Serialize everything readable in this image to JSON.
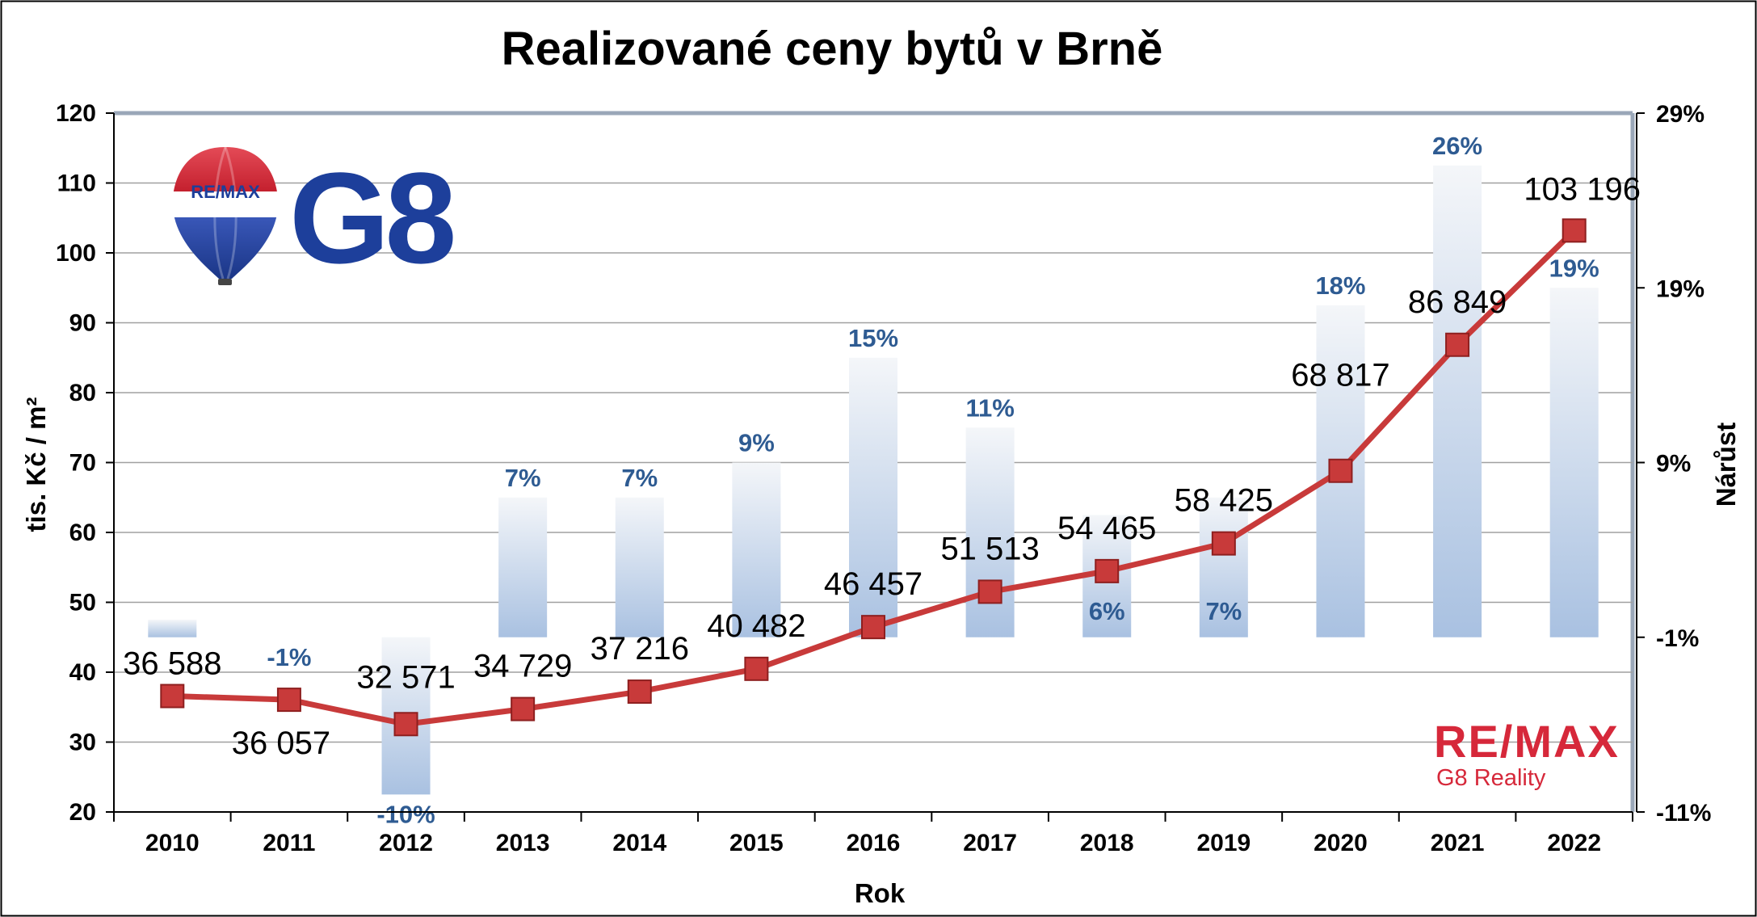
{
  "chart_data": {
    "type": "bar+line",
    "title": "Realizované ceny bytů v Brně",
    "xlabel": "Rok",
    "ylabel_left": "tis. Kč / m²",
    "ylabel_right": "Nárůst",
    "categories": [
      "2010",
      "2011",
      "2012",
      "2013",
      "2014",
      "2015",
      "2016",
      "2017",
      "2018",
      "2019",
      "2020",
      "2021",
      "2022"
    ],
    "y_left": {
      "min": 20,
      "max": 120,
      "ticks": [
        20,
        30,
        40,
        50,
        60,
        70,
        80,
        90,
        100,
        110,
        120
      ]
    },
    "y_right": {
      "min": -11,
      "max": 29,
      "ticks": [
        -11,
        -1,
        9,
        19,
        29
      ],
      "tick_labels": [
        "-11%",
        "-1%",
        "9%",
        "19%",
        "29%"
      ]
    },
    "grid": true,
    "series": [
      {
        "name": "",
        "kind": "line",
        "color": "#c83a3a",
        "values": [
          36.588,
          36.057,
          32.571,
          34.729,
          37.216,
          40.482,
          46.457,
          51.513,
          54.465,
          58.425,
          68.817,
          86.849,
          103.196
        ],
        "labels": [
          "36 588",
          "36 057",
          "32 571",
          "34 729",
          "37 216",
          "40 482",
          "46 457",
          "51 513",
          "54 465",
          "58 425",
          "68 817",
          "86 849",
          "103 196"
        ]
      },
      {
        "name": "",
        "kind": "bar",
        "color": "#b8cce4",
        "baseline": -1,
        "values": [
          0,
          -1,
          -10,
          7,
          7,
          9,
          15,
          11,
          6,
          7,
          18,
          26,
          19
        ],
        "labels": [
          "",
          "-1%",
          "-10%",
          "7%",
          "7%",
          "9%",
          "15%",
          "11%",
          "6%",
          "7%",
          "18%",
          "26%",
          "19%"
        ]
      }
    ]
  },
  "logos": {
    "top_balloon_text": "RE/MAX",
    "top_brand": "G8",
    "bottom_brand": "RE/MAX",
    "bottom_sub": "G8 Reality"
  },
  "colors": {
    "line": "#c83a3a",
    "marker": "#c83a3a",
    "bar_top": "#f3f5f8",
    "bar_bottom": "#a8c0e0",
    "pct_text": "#2e5b92",
    "brand_blue": "#1d3f9b",
    "brand_red": "#d6283a"
  }
}
